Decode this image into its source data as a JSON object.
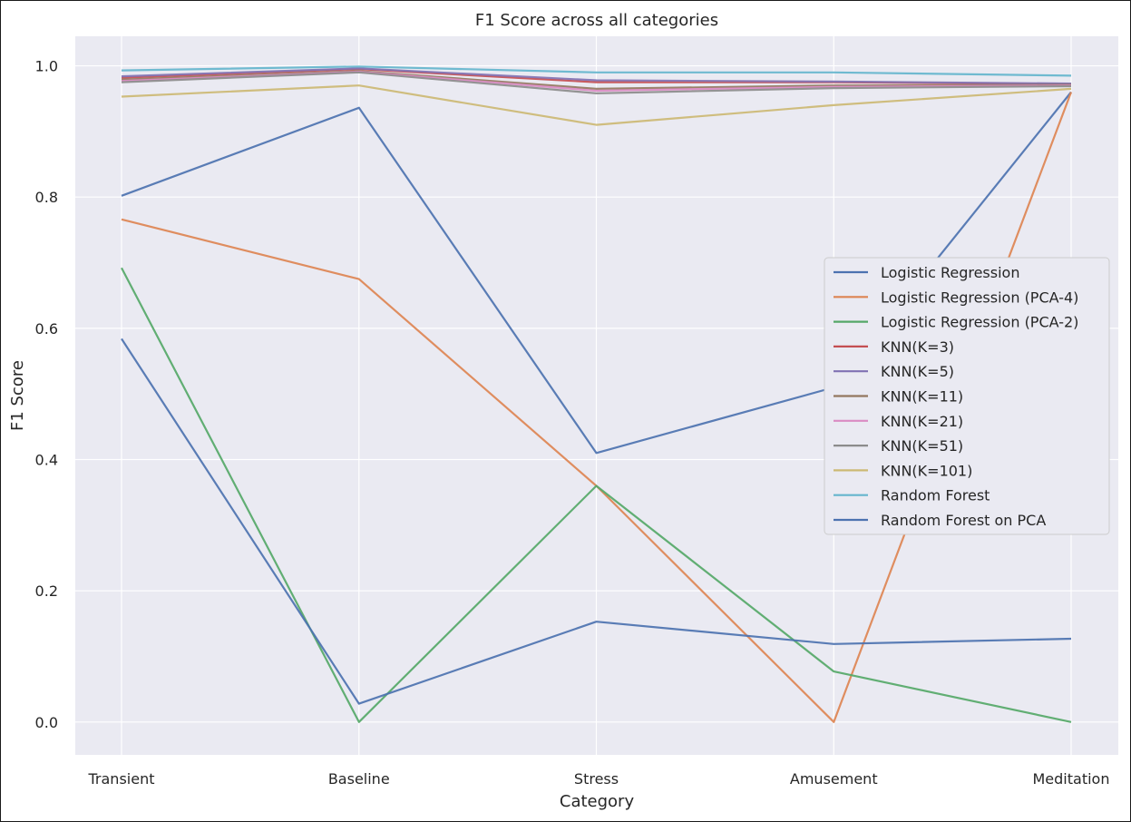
{
  "chart_data": {
    "type": "line",
    "title": "F1 Score across all categories",
    "xlabel": "Category",
    "ylabel": "F1 Score",
    "categories": [
      "Transient",
      "Baseline",
      "Stress",
      "Amusement",
      "Meditation"
    ],
    "ylim": [
      -0.05,
      1.045
    ],
    "yticks": [
      "0.0",
      "0.2",
      "0.4",
      "0.6",
      "0.8",
      "1.0"
    ],
    "grid": true,
    "legend_position": "center-right",
    "background": "#eaeaf2",
    "grid_color": "#ffffff",
    "series": [
      {
        "name": "Logistic Regression",
        "color": "#4c72b0",
        "values": [
          0.802,
          0.936,
          0.41,
          0.51,
          0.96
        ]
      },
      {
        "name": "Logistic Regression (PCA-4)",
        "color": "#dd8452",
        "values": [
          0.766,
          0.675,
          0.36,
          0.0,
          0.96
        ]
      },
      {
        "name": "Logistic Regression (PCA-2)",
        "color": "#55a868",
        "values": [
          0.692,
          0.0,
          0.36,
          0.077,
          0.0
        ]
      },
      {
        "name": "KNN(K=3)",
        "color": "#c44e52",
        "values": [
          0.982,
          0.995,
          0.975,
          0.975,
          0.972
        ]
      },
      {
        "name": "KNN(K=5)",
        "color": "#8172b3",
        "values": [
          0.984,
          0.996,
          0.978,
          0.976,
          0.973
        ]
      },
      {
        "name": "KNN(K=11)",
        "color": "#937860",
        "values": [
          0.979,
          0.992,
          0.965,
          0.97,
          0.971
        ]
      },
      {
        "name": "KNN(K=21)",
        "color": "#da8bc3",
        "values": [
          0.977,
          0.991,
          0.962,
          0.968,
          0.97
        ]
      },
      {
        "name": "KNN(K=51)",
        "color": "#8c8c8c",
        "values": [
          0.975,
          0.99,
          0.958,
          0.966,
          0.969
        ]
      },
      {
        "name": "KNN(K=101)",
        "color": "#ccb974",
        "values": [
          0.953,
          0.97,
          0.91,
          0.94,
          0.965
        ]
      },
      {
        "name": "Random Forest",
        "color": "#64b5cd",
        "values": [
          0.993,
          0.999,
          0.99,
          0.99,
          0.985
        ]
      },
      {
        "name": "Random Forest on PCA",
        "color": "#4c72b0",
        "values": [
          0.584,
          0.028,
          0.153,
          0.119,
          0.127
        ]
      }
    ]
  }
}
